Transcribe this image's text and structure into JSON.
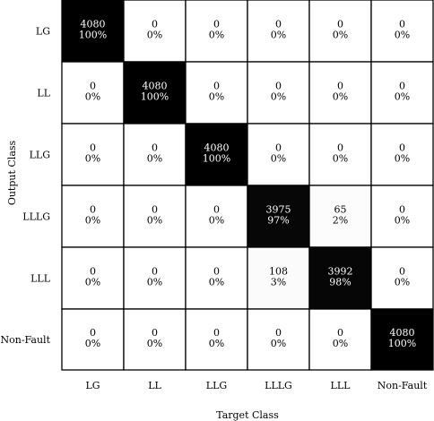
{
  "chart_data": {
    "type": "heatmap",
    "xlabel": "Target Class",
    "ylabel": "Output Class",
    "x_categories": [
      "LG",
      "LL",
      "LLG",
      "LLLG",
      "LLL",
      "Non-Fault"
    ],
    "y_categories": [
      "LG",
      "LL",
      "LLG",
      "LLLG",
      "LLL",
      "Non-Fault"
    ],
    "counts": [
      [
        4080,
        0,
        0,
        0,
        0,
        0
      ],
      [
        0,
        4080,
        0,
        0,
        0,
        0
      ],
      [
        0,
        0,
        4080,
        0,
        0,
        0
      ],
      [
        0,
        0,
        0,
        3975,
        65,
        0
      ],
      [
        0,
        0,
        0,
        108,
        3992,
        0
      ],
      [
        0,
        0,
        0,
        0,
        0,
        4080
      ]
    ],
    "percents": [
      [
        "100%",
        "0%",
        "0%",
        "0%",
        "0%",
        "0%"
      ],
      [
        "0%",
        "100%",
        "0%",
        "0%",
        "0%",
        "0%"
      ],
      [
        "0%",
        "0%",
        "100%",
        "0%",
        "0%",
        "0%"
      ],
      [
        "0%",
        "0%",
        "0%",
        "97%",
        "2%",
        "0%"
      ],
      [
        "0%",
        "0%",
        "0%",
        "3%",
        "98%",
        "0%"
      ],
      [
        "0%",
        "0%",
        "0%",
        "0%",
        "0%",
        "100%"
      ]
    ],
    "colormap": "grayscale (black = high, white = low)",
    "grid": true
  }
}
